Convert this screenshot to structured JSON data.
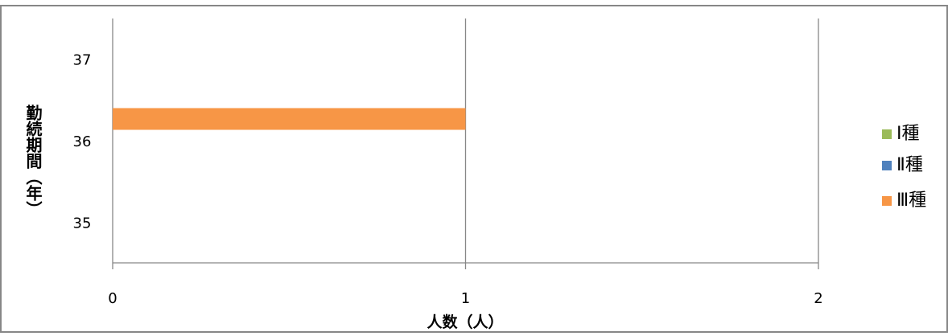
{
  "chart_data": {
    "type": "bar",
    "orientation": "horizontal",
    "categories": [
      "35",
      "36",
      "37"
    ],
    "series": [
      {
        "name": "Ⅰ種",
        "color": "#9BBB59",
        "values": [
          0,
          0,
          0
        ]
      },
      {
        "name": "Ⅱ種",
        "color": "#4F81BD",
        "values": [
          0,
          0,
          0
        ]
      },
      {
        "name": "Ⅲ種",
        "color": "#F79646",
        "values": [
          0,
          1,
          0
        ]
      }
    ],
    "xlabel": "人数（人）",
    "ylabel": "勤続期間（年）",
    "xlim": [
      0,
      2
    ],
    "xticks": [
      "0",
      "1",
      "2"
    ],
    "grid": true,
    "legend_position": "right"
  }
}
